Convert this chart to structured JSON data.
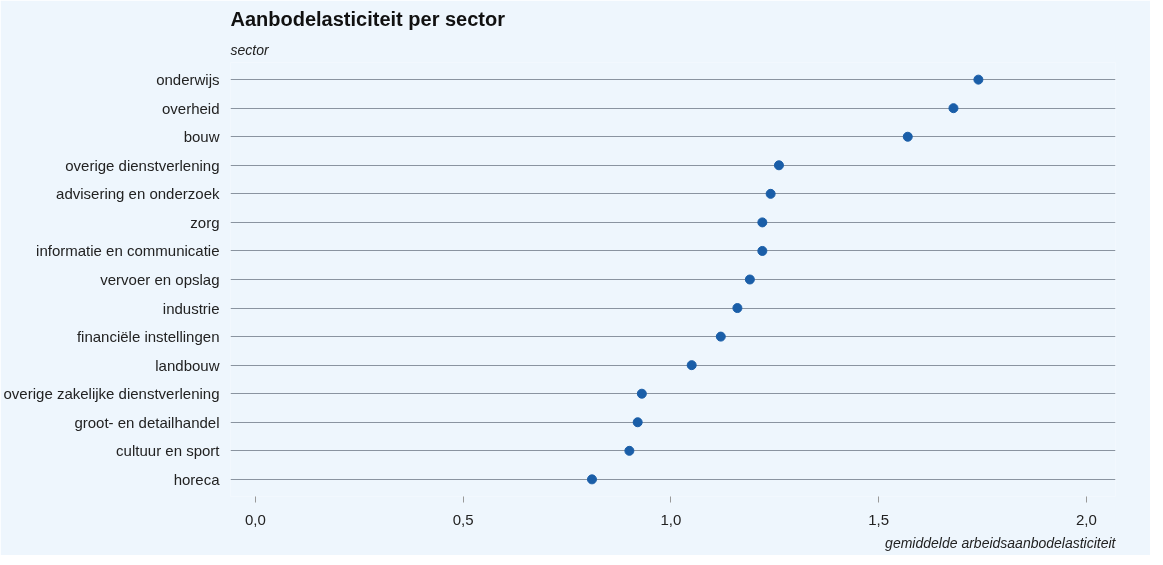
{
  "chart_data": {
    "type": "scatter",
    "title": "Aanbodelasticiteit per sector",
    "ylabel": "sector",
    "xlabel": "gemiddelde arbeidsaanbodelasticiteit",
    "orientation": "horizontal",
    "categories": [
      "onderwijs",
      "overheid",
      "bouw",
      "overige dienstverlening",
      "advisering en onderzoek",
      "zorg",
      "informatie en communicatie",
      "vervoer en opslag",
      "industrie",
      "financiële instellingen",
      "landbouw",
      "overige zakelijke dienstverlening",
      "groot- en detailhandel",
      "cultuur en sport",
      "horeca"
    ],
    "series": [
      {
        "color": "#1a5ea8",
        "values": [
          1.74,
          1.68,
          1.57,
          1.26,
          1.24,
          1.22,
          1.22,
          1.19,
          1.16,
          1.12,
          1.05,
          0.93,
          0.92,
          0.9,
          0.81
        ]
      }
    ],
    "xlim": [
      -0.06,
      2.07
    ],
    "xticks": [
      {
        "value": 0,
        "label": "0,0"
      },
      {
        "value": 0.5,
        "label": "0,5"
      },
      {
        "value": 1,
        "label": "1,0"
      },
      {
        "value": 1.5,
        "label": "1,5"
      },
      {
        "value": 2,
        "label": "2,0"
      }
    ],
    "grid": "y",
    "marker": "circle"
  }
}
